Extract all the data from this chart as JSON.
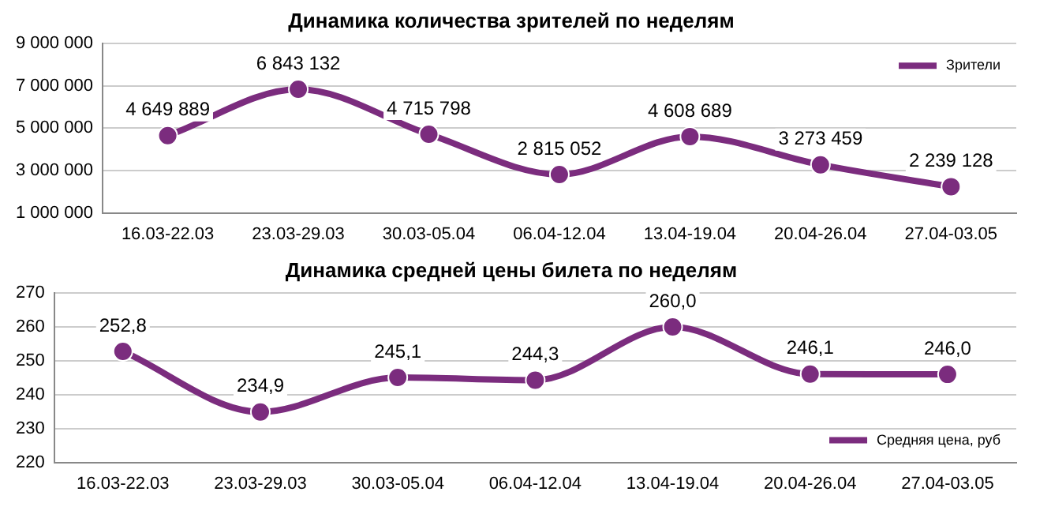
{
  "chart_data": [
    {
      "type": "line",
      "title": "Динамика количества зрителей по неделям",
      "categories": [
        "16.03-22.03",
        "23.03-29.03",
        "30.03-05.04",
        "06.04-12.04",
        "13.04-19.04",
        "20.04-26.04",
        "27.04-03.05"
      ],
      "series": [
        {
          "name": "Зрители",
          "color": "#7b2c7e",
          "values": [
            4649889,
            6843132,
            4715798,
            2815052,
            4608689,
            3273459,
            2239128
          ],
          "value_labels": [
            "4 649 889",
            "6 843 132",
            "4 715 798",
            "2 815 052",
            "4 608 689",
            "3 273 459",
            "2 239 128"
          ]
        }
      ],
      "ylim": [
        1000000,
        9000000
      ],
      "yticks": [
        {
          "value": 1000000,
          "label": "1 000 000"
        },
        {
          "value": 3000000,
          "label": "3 000 000"
        },
        {
          "value": 5000000,
          "label": "5 000 000"
        },
        {
          "value": 7000000,
          "label": "7 000 000"
        },
        {
          "value": 9000000,
          "label": "9 000 000"
        }
      ],
      "grid": "y",
      "legend": "top right",
      "marker": "circle",
      "line_style": "solid"
    },
    {
      "type": "line",
      "title": "Динамика средней цены билета по неделям",
      "categories": [
        "16.03-22.03",
        "23.03-29.03",
        "30.03-05.04",
        "06.04-12.04",
        "13.04-19.04",
        "20.04-26.04",
        "27.04-03.05"
      ],
      "series": [
        {
          "name": "Средняя цена, руб",
          "color": "#7b2c7e",
          "values": [
            252.8,
            234.9,
            245.1,
            244.3,
            260.0,
            246.1,
            246.0
          ],
          "value_labels": [
            "252,8",
            "234,9",
            "245,1",
            "244,3",
            "260,0",
            "246,1",
            "246,0"
          ]
        }
      ],
      "ylim": [
        220,
        270
      ],
      "yticks": [
        220,
        230,
        240,
        250,
        260,
        270
      ],
      "grid": "y",
      "legend": "bottom right",
      "marker": "circle",
      "line_style": "solid"
    }
  ]
}
